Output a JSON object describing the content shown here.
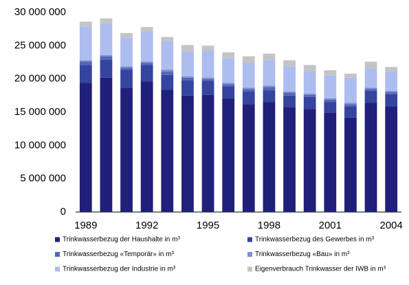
{
  "chart_data": {
    "type": "stacked-bar",
    "categories": [
      "1989",
      null,
      null,
      "1992",
      null,
      null,
      "1995",
      null,
      null,
      "1998",
      null,
      null,
      "2001",
      null,
      null,
      "2004"
    ],
    "series": [
      {
        "name": "Trinkwasserbezug der Haushalte in m³",
        "color": "#20207a",
        "values": [
          19400000,
          20200000,
          18700000,
          19600000,
          18400000,
          17500000,
          17600000,
          17100000,
          16200000,
          16500000,
          15800000,
          15500000,
          14900000,
          14200000,
          16400000,
          15900000
        ]
      },
      {
        "name": "Trinkwasserbezug des Gewerbes in m³",
        "color": "#35449e",
        "values": [
          2700000,
          2700000,
          2700000,
          2500000,
          2200000,
          2300000,
          2100000,
          1800000,
          1900000,
          1800000,
          1700000,
          1800000,
          1600000,
          1700000,
          1800000,
          1800000
        ]
      },
      {
        "name": "Trinkwasserbezug «Temporär» in m³",
        "color": "#5666b8",
        "values": [
          500000,
          500000,
          300000,
          300000,
          500000,
          400000,
          300000,
          300000,
          400000,
          500000,
          400000,
          300000,
          400000,
          300000,
          300000,
          300000
        ]
      },
      {
        "name": "Trinkwasserbezug «Bau» in m³",
        "color": "#7f8fd0",
        "values": [
          200000,
          200000,
          200000,
          200000,
          300000,
          200000,
          200000,
          200000,
          200000,
          200000,
          200000,
          200000,
          200000,
          200000,
          200000,
          200000
        ]
      },
      {
        "name": "Trinkwasserbezug der Industrie in m³",
        "color": "#adbdf0",
        "values": [
          5100000,
          4700000,
          4300000,
          4500000,
          4300000,
          3700000,
          4000000,
          3700000,
          3700000,
          3800000,
          3800000,
          3300000,
          3400000,
          3800000,
          2900000,
          2900000
        ]
      },
      {
        "name": "Eigenverbrauch Trinkwasser der IWB in m³",
        "color": "#c4c4c4",
        "values": [
          700000,
          800000,
          700000,
          700000,
          600000,
          1000000,
          800000,
          900000,
          1000000,
          1000000,
          900000,
          1000000,
          800000,
          600000,
          1000000,
          700000
        ]
      }
    ],
    "ylim": [
      0,
      30000000
    ],
    "yticks": [
      0,
      {
        "value": 5000000,
        "label": "5 000 000"
      },
      {
        "value": 10000000,
        "label": "10 000 000"
      },
      {
        "value": 15000000,
        "label": "15 000 000"
      },
      {
        "value": 20000000,
        "label": "20 000 000"
      },
      {
        "value": 25000000,
        "label": "25 000 000"
      },
      {
        "value": 30000000,
        "label": "30 000 000"
      }
    ],
    "grid": false
  }
}
